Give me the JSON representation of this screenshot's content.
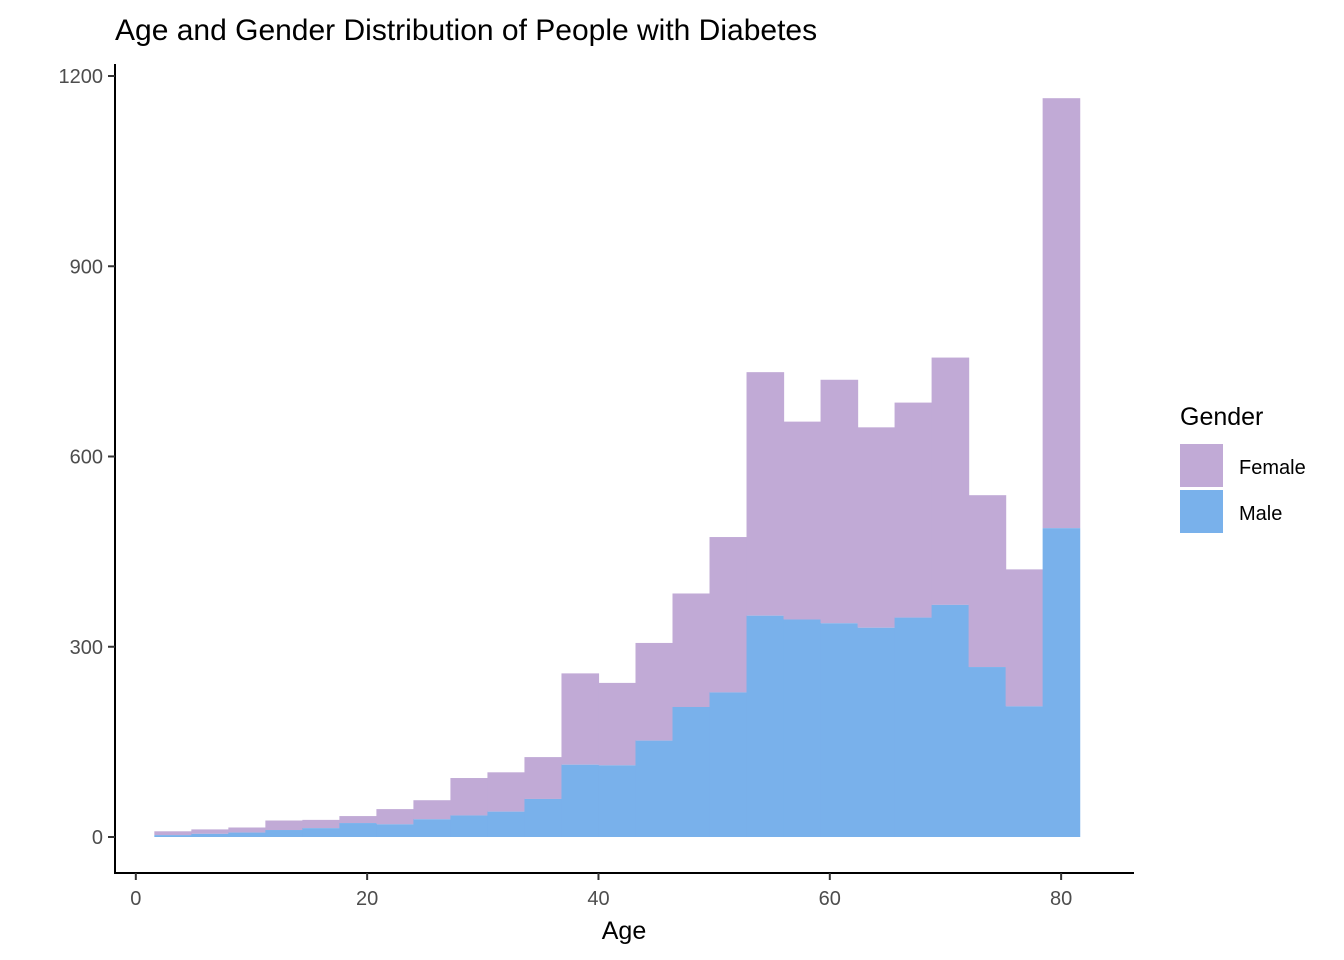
{
  "chart_data": {
    "type": "bar",
    "subtype": "stacked-histogram",
    "title": "Age and Gender Distribution of People with Diabetes",
    "xlabel": "Age",
    "ylabel": "",
    "xlim": [
      -1.8,
      86.3
    ],
    "ylim": [
      -92,
      1200
    ],
    "xticks": [
      0,
      20,
      40,
      60,
      80
    ],
    "yticks": [
      0,
      300,
      600,
      900,
      1200
    ],
    "grid": false,
    "legend": {
      "title": "Gender",
      "position": "right"
    },
    "bins": [
      [
        1.6,
        4.8
      ],
      [
        4.8,
        8.0
      ],
      [
        8.0,
        11.2
      ],
      [
        11.2,
        14.4
      ],
      [
        14.4,
        17.6
      ],
      [
        17.6,
        20.8
      ],
      [
        20.8,
        24.0
      ],
      [
        24.0,
        27.2
      ],
      [
        27.2,
        30.4
      ],
      [
        30.4,
        33.6
      ],
      [
        33.6,
        36.8
      ],
      [
        36.8,
        40.0
      ],
      [
        40.0,
        43.2
      ],
      [
        43.2,
        46.4
      ],
      [
        46.4,
        49.6
      ],
      [
        49.6,
        52.8
      ],
      [
        52.8,
        56.0
      ],
      [
        56.0,
        59.2
      ],
      [
        59.2,
        62.4
      ],
      [
        62.4,
        65.6
      ],
      [
        65.6,
        68.8
      ],
      [
        68.8,
        72.0
      ],
      [
        72.0,
        75.2
      ],
      [
        75.2,
        78.4
      ],
      [
        78.4,
        81.6
      ]
    ],
    "series": [
      {
        "name": "Male",
        "color": "#79b1eb",
        "values": [
          3,
          5,
          7,
          11,
          14,
          22,
          20,
          28,
          34,
          40,
          60,
          114,
          113,
          152,
          205,
          228,
          349,
          343,
          337,
          330,
          346,
          366,
          268,
          206,
          487
        ]
      },
      {
        "name": "Female",
        "color": "#c1aad6",
        "values": [
          6,
          7,
          8,
          15,
          13,
          11,
          24,
          30,
          59,
          62,
          66,
          144,
          130,
          154,
          179,
          245,
          384,
          312,
          384,
          316,
          339,
          390,
          271,
          216,
          678
        ]
      }
    ],
    "legend_order": [
      "Female",
      "Male"
    ]
  }
}
